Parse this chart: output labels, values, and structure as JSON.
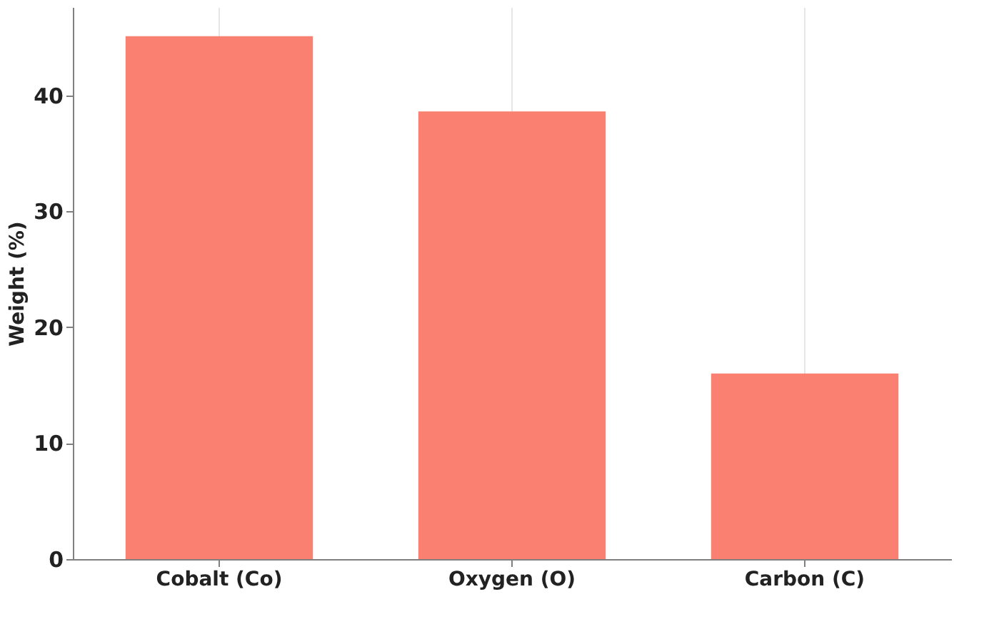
{
  "chart_data": {
    "type": "bar",
    "ylabel": "Weight (%)",
    "categories": [
      "Cobalt (Co)",
      "Oxygen (O)",
      "Carbon (C)"
    ],
    "values": [
      45.1,
      38.6,
      16.0
    ],
    "color": "#fa8072",
    "ylim": [
      0,
      47.6
    ],
    "yticks": [
      0,
      10,
      20,
      30,
      40
    ],
    "grid": "x"
  }
}
